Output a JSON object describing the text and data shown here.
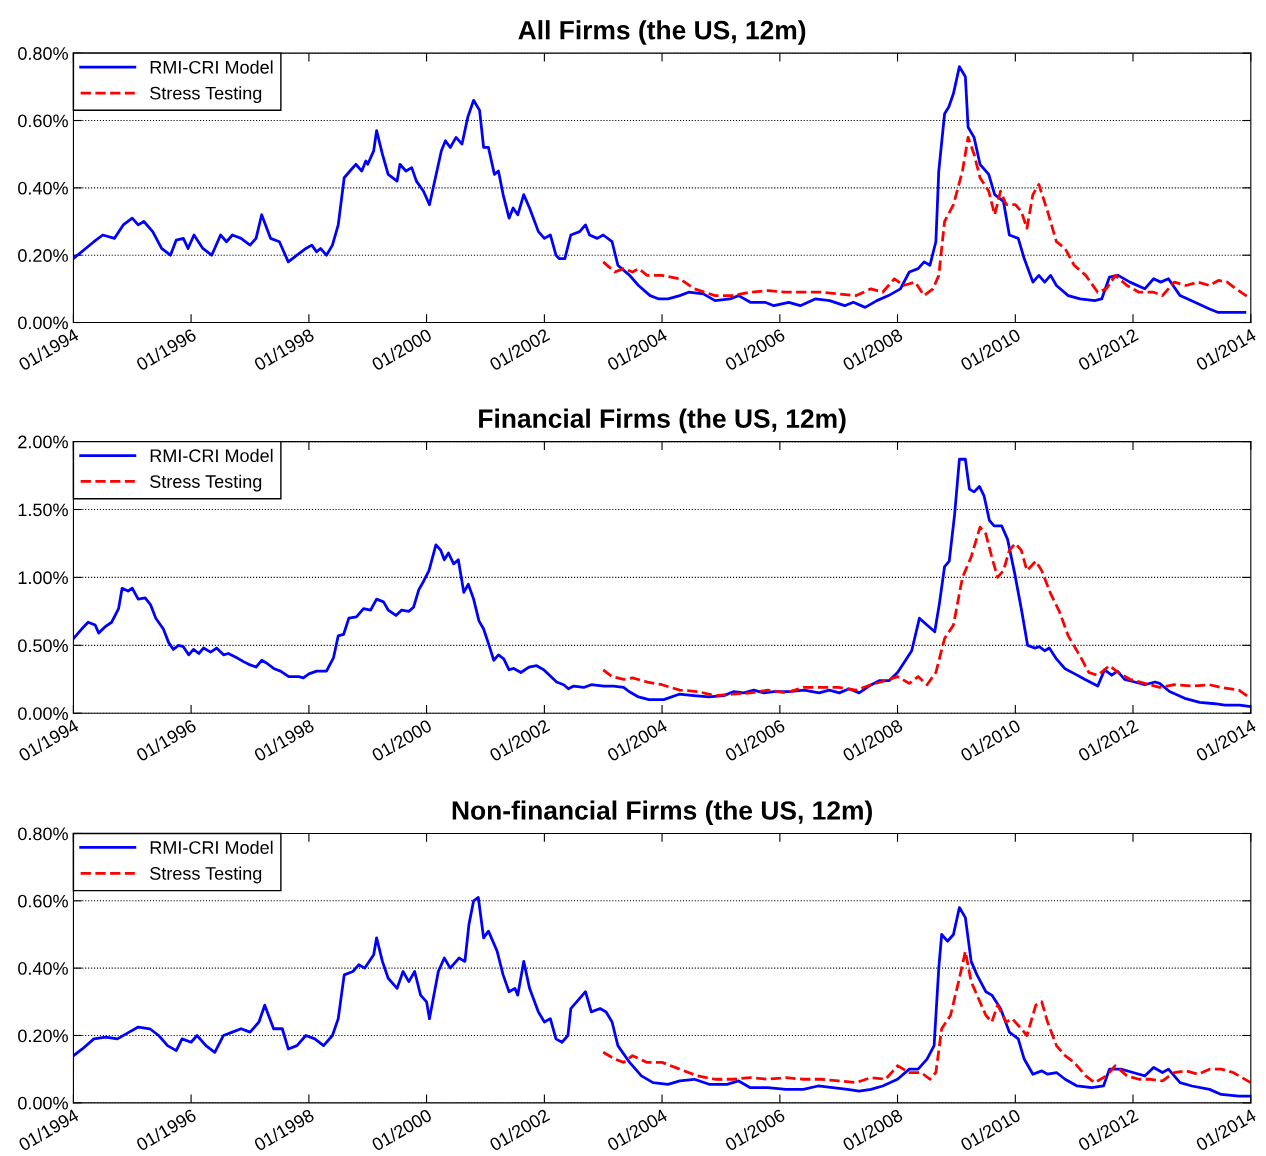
{
  "chart_data": [
    {
      "type": "line",
      "title": "All Firms (the US, 12m)",
      "grid": "y",
      "legend": "top left",
      "xlim": [
        "1994-01-01",
        "2014-01-01"
      ],
      "xticks": [
        {
          "value": "1994-01",
          "label": "01/1994"
        },
        {
          "value": "1996-01",
          "label": "01/1996"
        },
        {
          "value": "1998-01",
          "label": "01/1998"
        },
        {
          "value": "2000-01",
          "label": "01/2000"
        },
        {
          "value": "2002-01",
          "label": "01/2002"
        },
        {
          "value": "2004-01",
          "label": "01/2004"
        },
        {
          "value": "2006-01",
          "label": "01/2006"
        },
        {
          "value": "2008-01",
          "label": "01/2008"
        },
        {
          "value": "2010-01",
          "label": "01/2010"
        },
        {
          "value": "2012-01",
          "label": "01/2012"
        },
        {
          "value": "2014-01",
          "label": "01/2014"
        }
      ],
      "ylim": [
        0,
        0.8
      ],
      "yticks": [
        {
          "value": 0,
          "label": "0.00%"
        },
        {
          "value": 0.2,
          "label": "0.20%"
        },
        {
          "value": 0.4,
          "label": "0.40%"
        },
        {
          "value": 0.6,
          "label": "0.60%"
        },
        {
          "value": 0.8,
          "label": "0.80%"
        }
      ],
      "series": [
        {
          "name": "RMI-CRI Model",
          "color": "#0000ff",
          "line_style": "solid",
          "x": [
            "1994-01-01",
            "1994-05-08",
            "1994-07-02",
            "1994-09-13",
            "1994-11-06",
            "1995-01-01",
            "1995-02-07",
            "1995-03-14",
            "1995-05-08",
            "1995-07-02",
            "1995-08-26",
            "1995-10-01",
            "1995-11-14",
            "1995-12-13",
            "1996-01-19",
            "1996-03-14",
            "1996-05-08",
            "1996-07-02",
            "1996-08-08",
            "1996-09-13",
            "1996-11-06",
            "1997-01-01",
            "1997-02-07",
            "1997-03-14",
            "1997-05-08",
            "1997-07-02",
            "1997-08-26",
            "1997-10-19",
            "1997-12-13",
            "1998-01-19",
            "1998-02-18",
            "1998-03-14",
            "1998-04-20",
            "1998-05-27",
            "1998-07-02",
            "1998-08-08",
            "1998-09-13",
            "1998-10-19",
            "1998-11-25",
            "1998-12-20",
            "1999-01-01",
            "1999-02-07",
            "1999-02-25",
            "1999-04-02",
            "1999-05-08",
            "1999-07-02",
            "1999-07-20",
            "1999-08-26",
            "1999-10-01",
            "1999-10-30",
            "1999-12-13",
            "2000-01-19",
            "2000-02-25",
            "2000-04-02",
            "2000-04-27",
            "2000-05-27",
            "2000-07-02",
            "2000-08-08",
            "2000-09-13",
            "2000-10-19",
            "2000-11-25",
            "2000-12-20",
            "2001-01-19",
            "2001-02-25",
            "2001-03-22",
            "2001-04-20",
            "2001-05-27",
            "2001-06-21",
            "2001-07-20",
            "2001-08-26",
            "2001-10-01",
            "2001-11-25",
            "2002-01-01",
            "2002-02-07",
            "2002-03-14",
            "2002-04-02",
            "2002-05-08",
            "2002-06-14",
            "2002-08-08",
            "2002-09-13",
            "2002-10-08",
            "2002-11-25",
            "2003-01-01",
            "2003-02-25",
            "2003-04-02",
            "2003-06-14",
            "2003-08-08",
            "2003-10-19",
            "2003-12-13",
            "2004-02-07",
            "2004-04-20",
            "2004-06-14",
            "2004-09-13",
            "2004-11-25",
            "2005-02-25",
            "2005-04-20",
            "2005-07-02",
            "2005-10-01",
            "2005-11-25",
            "2006-02-25",
            "2006-05-08",
            "2006-08-08",
            "2006-11-06",
            "2007-02-07",
            "2007-04-02",
            "2007-06-14",
            "2007-08-26",
            "2007-11-06",
            "2008-01-19",
            "2008-03-14",
            "2008-05-08",
            "2008-06-14",
            "2008-07-20",
            "2008-08-26",
            "2008-09-13",
            "2008-10-19",
            "2008-11-14",
            "2008-12-13",
            "2009-01-19",
            "2009-02-25",
            "2009-03-14",
            "2009-04-20",
            "2009-05-27",
            "2009-07-20",
            "2009-08-26",
            "2009-10-19",
            "2009-11-25",
            "2010-01-19",
            "2010-02-25",
            "2010-04-20",
            "2010-05-27",
            "2010-07-02",
            "2010-08-08",
            "2010-09-13",
            "2010-11-25",
            "2011-02-07",
            "2011-05-08",
            "2011-06-21",
            "2011-08-08",
            "2011-10-01",
            "2011-12-13",
            "2012-03-14",
            "2012-05-08",
            "2012-06-21",
            "2012-08-08",
            "2012-10-19",
            "2013-01-19",
            "2013-04-20",
            "2013-06-14",
            "2013-09-13",
            "2013-11-25"
          ],
          "values": [
            0.19,
            0.24,
            0.26,
            0.25,
            0.29,
            0.31,
            0.29,
            0.3,
            0.27,
            0.22,
            0.2,
            0.245,
            0.25,
            0.22,
            0.26,
            0.22,
            0.2,
            0.26,
            0.24,
            0.26,
            0.25,
            0.23,
            0.25,
            0.32,
            0.25,
            0.24,
            0.18,
            0.2,
            0.22,
            0.23,
            0.21,
            0.22,
            0.2,
            0.23,
            0.29,
            0.43,
            0.45,
            0.47,
            0.45,
            0.48,
            0.47,
            0.51,
            0.57,
            0.5,
            0.44,
            0.42,
            0.47,
            0.45,
            0.46,
            0.42,
            0.39,
            0.35,
            0.43,
            0.51,
            0.54,
            0.52,
            0.55,
            0.53,
            0.61,
            0.66,
            0.63,
            0.52,
            0.52,
            0.44,
            0.45,
            0.38,
            0.31,
            0.34,
            0.32,
            0.38,
            0.34,
            0.27,
            0.25,
            0.26,
            0.2,
            0.19,
            0.19,
            0.26,
            0.27,
            0.29,
            0.26,
            0.25,
            0.26,
            0.24,
            0.17,
            0.14,
            0.11,
            0.08,
            0.07,
            0.07,
            0.08,
            0.09,
            0.085,
            0.065,
            0.07,
            0.08,
            0.06,
            0.06,
            0.05,
            0.06,
            0.05,
            0.07,
            0.065,
            0.05,
            0.06,
            0.045,
            0.065,
            0.08,
            0.1,
            0.15,
            0.16,
            0.18,
            0.17,
            0.24,
            0.45,
            0.62,
            0.64,
            0.68,
            0.76,
            0.73,
            0.58,
            0.55,
            0.47,
            0.44,
            0.38,
            0.36,
            0.26,
            0.25,
            0.19,
            0.12,
            0.14,
            0.12,
            0.14,
            0.11,
            0.08,
            0.07,
            0.065,
            0.07,
            0.135,
            0.14,
            0.12,
            0.1,
            0.13,
            0.12,
            0.13,
            0.08,
            0.06,
            0.04,
            0.03,
            0.03,
            0.03
          ]
        },
        {
          "name": "Stress Testing",
          "color": "#ff0000",
          "line_style": "dashed",
          "x": [
            "2003-01-01",
            "2003-03-14",
            "2003-05-08",
            "2003-07-02",
            "2003-08-08",
            "2003-10-01",
            "2004-01-01",
            "2004-04-20",
            "2004-07-20",
            "2004-11-25",
            "2005-03-14",
            "2005-07-02",
            "2005-10-19",
            "2006-02-07",
            "2006-05-27",
            "2006-09-13",
            "2007-01-01",
            "2007-04-20",
            "2007-07-20",
            "2007-10-01",
            "2007-12-13",
            "2008-02-07",
            "2008-04-20",
            "2008-06-14",
            "2008-08-08",
            "2008-09-13",
            "2008-10-19",
            "2008-12-13",
            "2009-02-07",
            "2009-03-14",
            "2009-04-20",
            "2009-05-27",
            "2009-07-20",
            "2009-08-26",
            "2009-10-01",
            "2009-11-06",
            "2010-01-01",
            "2010-02-07",
            "2010-03-14",
            "2010-04-20",
            "2010-05-27",
            "2010-07-20",
            "2010-09-13",
            "2010-11-06",
            "2011-01-01",
            "2011-03-14",
            "2011-05-27",
            "2011-07-20",
            "2011-09-13",
            "2011-11-25",
            "2012-02-07",
            "2012-05-08",
            "2012-07-02",
            "2012-09-13",
            "2012-11-25",
            "2013-02-07",
            "2013-04-20",
            "2013-06-14",
            "2013-08-08",
            "2013-10-01",
            "2014-01-01"
          ],
          "values": [
            0.18,
            0.15,
            0.16,
            0.15,
            0.16,
            0.14,
            0.14,
            0.13,
            0.1,
            0.08,
            0.08,
            0.09,
            0.095,
            0.09,
            0.09,
            0.09,
            0.085,
            0.08,
            0.1,
            0.09,
            0.13,
            0.11,
            0.12,
            0.08,
            0.1,
            0.14,
            0.3,
            0.35,
            0.45,
            0.55,
            0.5,
            0.43,
            0.39,
            0.32,
            0.39,
            0.35,
            0.35,
            0.33,
            0.28,
            0.38,
            0.41,
            0.33,
            0.24,
            0.22,
            0.17,
            0.14,
            0.09,
            0.1,
            0.14,
            0.11,
            0.09,
            0.09,
            0.08,
            0.12,
            0.11,
            0.12,
            0.11,
            0.125,
            0.12,
            0.1,
            0.07
          ]
        }
      ]
    },
    {
      "type": "line",
      "title": "Financial Firms (the US, 12m)",
      "grid": "y",
      "legend": "top left",
      "xlim": [
        "1994-01-01",
        "2014-01-01"
      ],
      "xticks": [
        {
          "value": "1994-01",
          "label": "01/1994"
        },
        {
          "value": "1996-01",
          "label": "01/1996"
        },
        {
          "value": "1998-01",
          "label": "01/1998"
        },
        {
          "value": "2000-01",
          "label": "01/2000"
        },
        {
          "value": "2002-01",
          "label": "01/2002"
        },
        {
          "value": "2004-01",
          "label": "01/2004"
        },
        {
          "value": "2006-01",
          "label": "01/2006"
        },
        {
          "value": "2008-01",
          "label": "01/2008"
        },
        {
          "value": "2010-01",
          "label": "01/2010"
        },
        {
          "value": "2012-01",
          "label": "01/2012"
        },
        {
          "value": "2014-01",
          "label": "01/2014"
        }
      ],
      "ylim": [
        0,
        2.0
      ],
      "yticks": [
        {
          "value": 0,
          "label": "0.00%"
        },
        {
          "value": 0.5,
          "label": "0.50%"
        },
        {
          "value": 1.0,
          "label": "1.00%"
        },
        {
          "value": 1.5,
          "label": "1.50%"
        },
        {
          "value": 2.0,
          "label": "2.00%"
        }
      ],
      "series": [
        {
          "name": "RMI-CRI Model",
          "color": "#0000ff",
          "line_style": "solid",
          "x": [
            "1994-01-01",
            "1994-02-21",
            "1994-04-02",
            "1994-05-16",
            "1994-06-07",
            "1994-07-20",
            "1994-08-26",
            "1994-10-08",
            "1994-10-30",
            "1994-12-06",
            "1995-01-01",
            "1995-02-07",
            "1995-03-22",
            "1995-04-24",
            "1995-05-27",
            "1995-07-13",
            "1995-08-15",
            "1995-09-13",
            "1995-10-15",
            "1995-11-14",
            "1995-12-17",
            "1996-01-16",
            "1996-02-18",
            "1996-03-18",
            "1996-05-01",
            "1996-06-07",
            "1996-07-20",
            "1996-08-19",
            "1996-10-08",
            "1996-11-21",
            "1996-12-24",
            "1997-02-07",
            "1997-03-14",
            "1997-04-13",
            "1997-05-27",
            "1997-07-09",
            "1997-08-29",
            "1997-10-30",
            "1997-11-28",
            "1998-01-01",
            "1998-02-18",
            "1998-04-20",
            "1998-06-03",
            "1998-07-02",
            "1998-08-04",
            "1998-09-06",
            "1998-10-23",
            "1998-12-06",
            "1999-01-19",
            "1999-02-25",
            "1999-04-09",
            "1999-05-08",
            "1999-06-25",
            "1999-07-31",
            "1999-09-13",
            "1999-10-12",
            "1999-11-14",
            "1999-12-13",
            "2000-01-16",
            "2000-02-28",
            "2000-03-29",
            "2000-04-20",
            "2000-05-16",
            "2000-06-17",
            "2000-07-16",
            "2000-08-19",
            "2000-09-16",
            "2000-10-19",
            "2000-11-21",
            "2000-12-20",
            "2001-01-23",
            "2001-02-21",
            "2001-03-22",
            "2001-04-24",
            "2001-05-27",
            "2001-06-25",
            "2001-08-08",
            "2001-09-27",
            "2001-11-14",
            "2001-12-28",
            "2002-02-10",
            "2002-03-18",
            "2002-05-01",
            "2002-05-30",
            "2002-07-02",
            "2002-09-02",
            "2002-10-19",
            "2003-01-05",
            "2003-03-07",
            "2003-05-08",
            "2003-06-10",
            "2003-08-08",
            "2003-10-12",
            "2004-01-12",
            "2004-04-16",
            "2004-07-16",
            "2004-10-19",
            "2005-01-19",
            "2005-03-22",
            "2005-05-23",
            "2005-07-24",
            "2005-09-24",
            "2005-11-25",
            "2006-02-28",
            "2006-05-30",
            "2006-09-02",
            "2006-11-03",
            "2007-01-05",
            "2007-03-07",
            "2007-05-08",
            "2007-07-09",
            "2007-09-09",
            "2007-11-10",
            "2008-01-01",
            "2008-02-14",
            "2008-03-29",
            "2008-05-16",
            "2008-07-02",
            "2008-08-19",
            "2008-09-16",
            "2008-10-19",
            "2008-11-17",
            "2008-12-20",
            "2009-01-19",
            "2009-02-25",
            "2009-03-22",
            "2009-04-20",
            "2009-05-23",
            "2009-06-21",
            "2009-07-24",
            "2009-08-22",
            "2009-10-08",
            "2009-11-14",
            "2009-12-28",
            "2010-02-10",
            "2010-03-18",
            "2010-05-01",
            "2010-05-30",
            "2010-07-02",
            "2010-07-31",
            "2010-09-13",
            "2010-11-03",
            "2011-01-05",
            "2011-03-07",
            "2011-05-27",
            "2011-07-09",
            "2011-08-22",
            "2011-09-27",
            "2011-11-10",
            "2012-01-12",
            "2012-03-14",
            "2012-05-16",
            "2012-06-14",
            "2012-08-15",
            "2012-11-17",
            "2013-02-18",
            "2013-05-23",
            "2013-07-24",
            "2013-10-23",
            "2013-12-24"
          ],
          "values": [
            0.55,
            0.62,
            0.67,
            0.65,
            0.59,
            0.64,
            0.67,
            0.77,
            0.92,
            0.9,
            0.92,
            0.84,
            0.85,
            0.8,
            0.7,
            0.62,
            0.52,
            0.47,
            0.5,
            0.49,
            0.43,
            0.47,
            0.44,
            0.48,
            0.45,
            0.48,
            0.43,
            0.44,
            0.41,
            0.38,
            0.36,
            0.34,
            0.39,
            0.37,
            0.33,
            0.31,
            0.27,
            0.27,
            0.26,
            0.29,
            0.31,
            0.31,
            0.41,
            0.57,
            0.58,
            0.7,
            0.71,
            0.77,
            0.76,
            0.84,
            0.82,
            0.76,
            0.72,
            0.76,
            0.75,
            0.78,
            0.91,
            0.97,
            1.05,
            1.24,
            1.2,
            1.13,
            1.18,
            1.1,
            1.13,
            0.89,
            0.95,
            0.84,
            0.68,
            0.62,
            0.5,
            0.39,
            0.43,
            0.4,
            0.32,
            0.33,
            0.3,
            0.34,
            0.35,
            0.32,
            0.27,
            0.23,
            0.21,
            0.18,
            0.2,
            0.19,
            0.21,
            0.2,
            0.2,
            0.19,
            0.16,
            0.12,
            0.1,
            0.1,
            0.14,
            0.13,
            0.12,
            0.13,
            0.16,
            0.15,
            0.17,
            0.15,
            0.16,
            0.16,
            0.17,
            0.15,
            0.17,
            0.15,
            0.18,
            0.15,
            0.2,
            0.24,
            0.24,
            0.3,
            0.38,
            0.46,
            0.7,
            0.65,
            0.6,
            0.8,
            1.08,
            1.12,
            1.46,
            1.87,
            1.87,
            1.65,
            1.63,
            1.67,
            1.6,
            1.42,
            1.38,
            1.38,
            1.28,
            1.03,
            0.75,
            0.5,
            0.48,
            0.49,
            0.46,
            0.48,
            0.4,
            0.33,
            0.29,
            0.25,
            0.2,
            0.32,
            0.28,
            0.31,
            0.25,
            0.23,
            0.21,
            0.23,
            0.22,
            0.16,
            0.11,
            0.08,
            0.07,
            0.06,
            0.06,
            0.05
          ]
        },
        {
          "name": "Stress Testing",
          "color": "#ff0000",
          "line_style": "dashed",
          "x": [
            "2003-01-01",
            "2003-02-25",
            "2003-05-08",
            "2003-07-02",
            "2003-10-01",
            "2004-01-01",
            "2004-04-20",
            "2004-08-08",
            "2004-11-25",
            "2005-03-14",
            "2005-07-02",
            "2005-10-19",
            "2006-02-07",
            "2006-05-27",
            "2006-09-13",
            "2007-01-01",
            "2007-04-20",
            "2007-07-20",
            "2007-10-19",
            "2008-01-01",
            "2008-03-14",
            "2008-05-08",
            "2008-07-02",
            "2008-08-26",
            "2008-10-19",
            "2008-12-13",
            "2009-02-07",
            "2009-04-02",
            "2009-05-27",
            "2009-07-02",
            "2009-08-08",
            "2009-09-13",
            "2009-10-19",
            "2009-11-25",
            "2010-01-01",
            "2010-02-07",
            "2010-03-14",
            "2010-05-08",
            "2010-06-14",
            "2010-08-08",
            "2010-10-01",
            "2010-11-25",
            "2011-02-07",
            "2011-04-02",
            "2011-05-27",
            "2011-08-08",
            "2011-10-01",
            "2011-12-13",
            "2012-03-14",
            "2012-06-14",
            "2012-09-13",
            "2013-01-01",
            "2013-04-20",
            "2013-07-02",
            "2013-10-19",
            "2014-01-01"
          ],
          "values": [
            0.32,
            0.27,
            0.25,
            0.26,
            0.23,
            0.21,
            0.17,
            0.16,
            0.13,
            0.14,
            0.15,
            0.17,
            0.15,
            0.19,
            0.19,
            0.19,
            0.17,
            0.21,
            0.24,
            0.27,
            0.22,
            0.27,
            0.21,
            0.3,
            0.55,
            0.65,
            1.0,
            1.15,
            1.37,
            1.32,
            1.15,
            1.0,
            1.05,
            1.2,
            1.25,
            1.2,
            1.05,
            1.12,
            1.05,
            0.88,
            0.75,
            0.57,
            0.42,
            0.3,
            0.28,
            0.35,
            0.3,
            0.25,
            0.22,
            0.19,
            0.21,
            0.2,
            0.21,
            0.19,
            0.17,
            0.11
          ]
        }
      ]
    },
    {
      "type": "line",
      "title": "Non-financial Firms (the US, 12m)",
      "grid": "y",
      "legend": "top left",
      "xlim": [
        "1994-01-01",
        "2014-01-01"
      ],
      "xticks": [
        {
          "value": "1994-01",
          "label": "01/1994"
        },
        {
          "value": "1996-01",
          "label": "01/1996"
        },
        {
          "value": "1998-01",
          "label": "01/1998"
        },
        {
          "value": "2000-01",
          "label": "01/2000"
        },
        {
          "value": "2002-01",
          "label": "01/2002"
        },
        {
          "value": "2004-01",
          "label": "01/2004"
        },
        {
          "value": "2006-01",
          "label": "01/2006"
        },
        {
          "value": "2008-01",
          "label": "01/2008"
        },
        {
          "value": "2010-01",
          "label": "01/2010"
        },
        {
          "value": "2012-01",
          "label": "01/2012"
        },
        {
          "value": "2014-01",
          "label": "01/2014"
        }
      ],
      "ylim": [
        0,
        0.8
      ],
      "yticks": [
        {
          "value": 0,
          "label": "0.00%"
        },
        {
          "value": 0.2,
          "label": "0.20%"
        },
        {
          "value": 0.4,
          "label": "0.40%"
        },
        {
          "value": 0.6,
          "label": "0.60%"
        },
        {
          "value": 0.8,
          "label": "0.80%"
        }
      ],
      "series": [
        {
          "name": "RMI-CRI Model",
          "color": "#0000ff",
          "line_style": "solid",
          "x": [
            "1994-01-01",
            "1994-02-25",
            "1994-05-08",
            "1994-07-20",
            "1994-10-01",
            "1994-12-13",
            "1995-02-07",
            "1995-04-20",
            "1995-06-14",
            "1995-08-08",
            "1995-10-01",
            "1995-11-06",
            "1996-01-01",
            "1996-02-07",
            "1996-04-02",
            "1996-05-27",
            "1996-07-20",
            "1996-09-13",
            "1996-11-06",
            "1997-01-01",
            "1997-02-25",
            "1997-04-02",
            "1997-05-27",
            "1997-07-20",
            "1997-08-26",
            "1997-10-19",
            "1997-12-13",
            "1998-02-07",
            "1998-04-02",
            "1998-05-27",
            "1998-07-02",
            "1998-08-08",
            "1998-10-01",
            "1998-11-06",
            "1998-12-13",
            "1999-02-07",
            "1999-02-25",
            "1999-04-02",
            "1999-05-08",
            "1999-07-02",
            "1999-08-08",
            "1999-09-13",
            "1999-10-19",
            "1999-11-25",
            "2000-01-01",
            "2000-01-19",
            "2000-03-14",
            "2000-04-20",
            "2000-05-27",
            "2000-07-20",
            "2000-08-26",
            "2000-09-20",
            "2000-10-19",
            "2000-11-17",
            "2000-12-20",
            "2001-01-19",
            "2001-03-14",
            "2001-04-20",
            "2001-05-27",
            "2001-07-02",
            "2001-07-20",
            "2001-08-26",
            "2001-10-01",
            "2001-11-25",
            "2002-01-01",
            "2002-02-07",
            "2002-03-14",
            "2002-04-20",
            "2002-05-27",
            "2002-06-14",
            "2002-08-08",
            "2002-09-13",
            "2002-10-19",
            "2002-12-13",
            "2003-01-19",
            "2003-02-25",
            "2003-04-02",
            "2003-06-14",
            "2003-08-26",
            "2003-11-06",
            "2004-02-07",
            "2004-04-20",
            "2004-07-20",
            "2004-10-19",
            "2005-02-07",
            "2005-04-20",
            "2005-07-02",
            "2005-10-19",
            "2006-02-07",
            "2006-05-27",
            "2006-08-26",
            "2006-11-25",
            "2007-02-25",
            "2007-05-08",
            "2007-07-20",
            "2007-10-01",
            "2008-01-01",
            "2008-03-14",
            "2008-05-08",
            "2008-07-02",
            "2008-08-15",
            "2008-09-13",
            "2008-10-01",
            "2008-11-06",
            "2008-12-13",
            "2009-01-19",
            "2009-02-25",
            "2009-04-02",
            "2009-05-08",
            "2009-07-02",
            "2009-08-08",
            "2009-10-01",
            "2009-11-25",
            "2010-01-19",
            "2010-02-25",
            "2010-04-20",
            "2010-06-14",
            "2010-07-20",
            "2010-09-13",
            "2010-11-06",
            "2011-01-19",
            "2011-04-20",
            "2011-07-02",
            "2011-08-08",
            "2011-10-19",
            "2012-01-01",
            "2012-03-14",
            "2012-05-08",
            "2012-07-02",
            "2012-08-08",
            "2012-10-19",
            "2013-01-01",
            "2013-04-20",
            "2013-07-02",
            "2013-10-19",
            "2014-01-01"
          ],
          "values": [
            0.14,
            0.16,
            0.19,
            0.195,
            0.19,
            0.21,
            0.225,
            0.22,
            0.2,
            0.17,
            0.155,
            0.19,
            0.18,
            0.2,
            0.17,
            0.15,
            0.2,
            0.21,
            0.22,
            0.21,
            0.24,
            0.29,
            0.22,
            0.22,
            0.16,
            0.17,
            0.2,
            0.19,
            0.17,
            0.2,
            0.25,
            0.38,
            0.39,
            0.41,
            0.4,
            0.44,
            0.49,
            0.42,
            0.37,
            0.34,
            0.39,
            0.36,
            0.39,
            0.32,
            0.3,
            0.25,
            0.39,
            0.43,
            0.4,
            0.43,
            0.42,
            0.53,
            0.6,
            0.61,
            0.49,
            0.51,
            0.45,
            0.38,
            0.33,
            0.34,
            0.32,
            0.42,
            0.34,
            0.27,
            0.24,
            0.25,
            0.19,
            0.18,
            0.2,
            0.28,
            0.31,
            0.33,
            0.27,
            0.28,
            0.27,
            0.24,
            0.17,
            0.12,
            0.08,
            0.06,
            0.055,
            0.065,
            0.07,
            0.055,
            0.055,
            0.065,
            0.045,
            0.045,
            0.04,
            0.04,
            0.05,
            0.045,
            0.04,
            0.035,
            0.04,
            0.05,
            0.07,
            0.1,
            0.1,
            0.13,
            0.17,
            0.4,
            0.5,
            0.48,
            0.5,
            0.58,
            0.55,
            0.42,
            0.38,
            0.33,
            0.32,
            0.28,
            0.21,
            0.19,
            0.13,
            0.085,
            0.095,
            0.085,
            0.09,
            0.07,
            0.05,
            0.045,
            0.05,
            0.1,
            0.1,
            0.09,
            0.08,
            0.105,
            0.09,
            0.1,
            0.06,
            0.05,
            0.04,
            0.025,
            0.02,
            0.02
          ]
        },
        {
          "name": "Stress Testing",
          "color": "#ff0000",
          "line_style": "dashed",
          "x": [
            "2003-01-01",
            "2003-03-14",
            "2003-05-08",
            "2003-07-02",
            "2003-10-01",
            "2004-01-01",
            "2004-04-20",
            "2004-08-08",
            "2004-11-25",
            "2005-03-14",
            "2005-07-02",
            "2005-10-19",
            "2006-02-07",
            "2006-05-27",
            "2006-09-13",
            "2007-01-01",
            "2007-04-20",
            "2007-07-20",
            "2007-10-19",
            "2008-01-01",
            "2008-03-14",
            "2008-05-27",
            "2008-07-20",
            "2008-08-26",
            "2008-10-01",
            "2008-11-25",
            "2009-01-19",
            "2009-02-25",
            "2009-04-02",
            "2009-05-08",
            "2009-07-02",
            "2009-08-08",
            "2009-09-13",
            "2009-11-06",
            "2009-12-13",
            "2010-02-07",
            "2010-03-14",
            "2010-05-08",
            "2010-06-14",
            "2010-07-20",
            "2010-09-13",
            "2010-11-06",
            "2011-01-01",
            "2011-03-14",
            "2011-05-08",
            "2011-07-20",
            "2011-09-13",
            "2011-11-25",
            "2012-02-07",
            "2012-04-20",
            "2012-07-02",
            "2012-09-13",
            "2012-11-25",
            "2013-02-07",
            "2013-04-20",
            "2013-07-02",
            "2013-09-13",
            "2014-01-01"
          ],
          "values": [
            0.15,
            0.13,
            0.12,
            0.14,
            0.12,
            0.12,
            0.1,
            0.08,
            0.07,
            0.07,
            0.075,
            0.07,
            0.075,
            0.07,
            0.07,
            0.065,
            0.06,
            0.075,
            0.07,
            0.11,
            0.09,
            0.09,
            0.07,
            0.09,
            0.22,
            0.26,
            0.37,
            0.45,
            0.36,
            0.32,
            0.26,
            0.24,
            0.29,
            0.24,
            0.25,
            0.22,
            0.2,
            0.29,
            0.3,
            0.24,
            0.17,
            0.14,
            0.12,
            0.08,
            0.06,
            0.08,
            0.11,
            0.08,
            0.07,
            0.07,
            0.065,
            0.09,
            0.095,
            0.085,
            0.1,
            0.1,
            0.09,
            0.06
          ]
        }
      ]
    }
  ]
}
